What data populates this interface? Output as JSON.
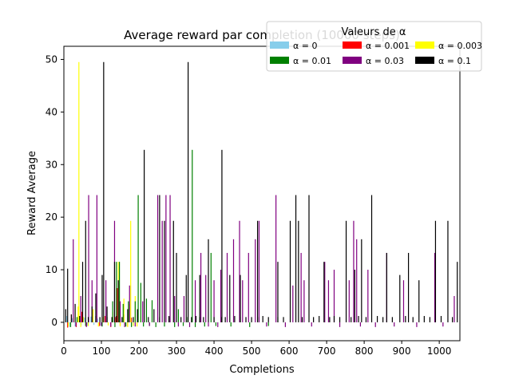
{
  "chart_data": {
    "type": "bar",
    "title": "Average reward par completion (10000 steps)",
    "xlabel": "Completions",
    "ylabel": "Reward Average",
    "xlim": [
      0,
      1055
    ],
    "ylim": [
      -3.5,
      52.5
    ],
    "xticks": [
      0,
      100,
      200,
      300,
      400,
      500,
      600,
      700,
      800,
      900,
      1000
    ],
    "yticks": [
      0,
      10,
      20,
      30,
      40,
      50
    ],
    "xtick_labels": [
      "0",
      "100",
      "200",
      "300",
      "400",
      "500",
      "600",
      "700",
      "800",
      "900",
      "1000"
    ],
    "ytick_labels": [
      "0",
      "10",
      "20",
      "30",
      "40",
      "50"
    ],
    "grid": false,
    "legend": {
      "title": "Valeurs de α",
      "placement": "top-right",
      "ncol": 3
    },
    "series": [
      {
        "name": "α = 0",
        "color": "#87ceeb",
        "points": [
          [
            8,
            1.2
          ],
          [
            15,
            -0.9
          ],
          [
            22,
            0.8
          ],
          [
            30,
            -0.8
          ],
          [
            38,
            1.0
          ],
          [
            46,
            -0.6
          ],
          [
            55,
            0.9
          ],
          [
            63,
            -0.7
          ],
          [
            72,
            1.1
          ],
          [
            80,
            -0.5
          ],
          [
            90,
            0.7
          ],
          [
            98,
            -0.6
          ]
        ]
      },
      {
        "name": "α = 0.001",
        "color": "#ff0000",
        "points": [
          [
            10,
            -1.0
          ],
          [
            20,
            1.5
          ],
          [
            33,
            -0.9
          ],
          [
            48,
            2.0
          ],
          [
            60,
            -0.8
          ],
          [
            75,
            1.0
          ],
          [
            95,
            -0.7
          ],
          [
            110,
            1.2
          ],
          [
            125,
            -0.9
          ],
          [
            138,
            1.0
          ],
          [
            142,
            6.5
          ],
          [
            150,
            -0.6
          ],
          [
            160,
            1.5
          ],
          [
            170,
            -0.8
          ],
          [
            180,
            0.9
          ]
        ]
      },
      {
        "name": "α = 0.003",
        "color": "#ffff00",
        "points": [
          [
            12,
            -0.8
          ],
          [
            25,
            0.9
          ],
          [
            38,
            3.0
          ],
          [
            40,
            49.5
          ],
          [
            45,
            -0.9
          ],
          [
            52,
            1.0
          ],
          [
            65,
            -0.7
          ],
          [
            78,
            2.5
          ],
          [
            92,
            -0.8
          ],
          [
            105,
            1.0
          ],
          [
            118,
            -0.6
          ],
          [
            130,
            2.0
          ],
          [
            145,
            11.5
          ],
          [
            150,
            -0.8
          ],
          [
            160,
            4.5
          ],
          [
            170,
            -0.9
          ],
          [
            175,
            3.5
          ],
          [
            178,
            19.3
          ],
          [
            185,
            -0.7
          ],
          [
            190,
            5.0
          ],
          [
            195,
            -0.8
          ],
          [
            205,
            1.1
          ]
        ]
      },
      {
        "name": "α = 0.01",
        "color": "#008000",
        "points": [
          [
            18,
            -0.9
          ],
          [
            35,
            1.0
          ],
          [
            58,
            -0.7
          ],
          [
            85,
            1.2
          ],
          [
            102,
            -0.8
          ],
          [
            115,
            1.0
          ],
          [
            130,
            4.0
          ],
          [
            136,
            -0.9
          ],
          [
            140,
            11.5
          ],
          [
            148,
            11.5
          ],
          [
            158,
            3.5
          ],
          [
            165,
            -0.8
          ],
          [
            172,
            4.0
          ],
          [
            180,
            -0.9
          ],
          [
            190,
            4.0
          ],
          [
            198,
            24.2
          ],
          [
            205,
            7.5
          ],
          [
            212,
            -0.8
          ],
          [
            220,
            4.5
          ],
          [
            228,
            -0.7
          ],
          [
            235,
            4.2
          ],
          [
            245,
            -0.9
          ],
          [
            255,
            1.0
          ],
          [
            268,
            -0.8
          ],
          [
            280,
            1.0
          ],
          [
            295,
            -0.9
          ],
          [
            305,
            2.5
          ],
          [
            318,
            -0.7
          ],
          [
            330,
            1.0
          ],
          [
            342,
            32.8
          ],
          [
            350,
            -0.9
          ],
          [
            362,
            1.0
          ],
          [
            375,
            -0.8
          ],
          [
            392,
            13.2
          ],
          [
            405,
            -0.7
          ],
          [
            420,
            1.0
          ],
          [
            445,
            -0.8
          ],
          [
            470,
            1.0
          ],
          [
            495,
            -0.9
          ],
          [
            520,
            1.0
          ],
          [
            545,
            -0.7
          ],
          [
            570,
            1.0
          ]
        ]
      },
      {
        "name": "α = 0.03",
        "color": "#800080",
        "points": [
          [
            25,
            15.8
          ],
          [
            32,
            -0.8
          ],
          [
            45,
            5.0
          ],
          [
            60,
            -0.9
          ],
          [
            66,
            24.2
          ],
          [
            75,
            8.0
          ],
          [
            88,
            24.2
          ],
          [
            100,
            -0.7
          ],
          [
            112,
            8.0
          ],
          [
            125,
            -0.8
          ],
          [
            135,
            19.3
          ],
          [
            150,
            4.0
          ],
          [
            162,
            -0.9
          ],
          [
            175,
            7.0
          ],
          [
            190,
            -0.8
          ],
          [
            210,
            4.0
          ],
          [
            228,
            -0.7
          ],
          [
            250,
            24.2
          ],
          [
            262,
            19.3
          ],
          [
            272,
            24.2
          ],
          [
            283,
            24.2
          ],
          [
            295,
            5.0
          ],
          [
            305,
            -0.8
          ],
          [
            320,
            5.0
          ],
          [
            335,
            -0.9
          ],
          [
            350,
            8.0
          ],
          [
            365,
            13.2
          ],
          [
            378,
            9.0
          ],
          [
            385,
            -0.8
          ],
          [
            400,
            8.0
          ],
          [
            410,
            -0.9
          ],
          [
            418,
            10.0
          ],
          [
            435,
            13.2
          ],
          [
            452,
            15.8
          ],
          [
            468,
            19.3
          ],
          [
            476,
            8.0
          ],
          [
            492,
            13.2
          ],
          [
            510,
            15.8
          ],
          [
            520,
            19.3
          ],
          [
            540,
            -0.8
          ],
          [
            565,
            24.2
          ],
          [
            590,
            -0.9
          ],
          [
            610,
            7.0
          ],
          [
            632,
            13.2
          ],
          [
            640,
            8.0
          ],
          [
            660,
            -0.8
          ],
          [
            695,
            11.5
          ],
          [
            705,
            8.0
          ],
          [
            720,
            10.0
          ],
          [
            735,
            -0.9
          ],
          [
            760,
            8.0
          ],
          [
            772,
            19.3
          ],
          [
            780,
            15.8
          ],
          [
            790,
            -0.8
          ],
          [
            810,
            10.0
          ],
          [
            830,
            -0.9
          ],
          [
            860,
            13.2
          ],
          [
            880,
            -0.8
          ],
          [
            905,
            8.0
          ],
          [
            940,
            -0.9
          ],
          [
            988,
            13.2
          ],
          [
            1010,
            -0.8
          ],
          [
            1040,
            5.0
          ]
        ]
      },
      {
        "name": "α = 0.1",
        "color": "#000000",
        "points": [
          [
            5,
            2.5
          ],
          [
            10,
            10.2
          ],
          [
            20,
            1.5
          ],
          [
            30,
            3.5
          ],
          [
            42,
            1.2
          ],
          [
            50,
            11.5
          ],
          [
            58,
            19.3
          ],
          [
            65,
            1.0
          ],
          [
            75,
            3.0
          ],
          [
            85,
            5.5
          ],
          [
            96,
            1.0
          ],
          [
            102,
            9.0
          ],
          [
            106,
            49.5
          ],
          [
            115,
            3.0
          ],
          [
            128,
            1.0
          ],
          [
            135,
            11.5
          ],
          [
            140,
            1.2
          ],
          [
            145,
            8.0
          ],
          [
            155,
            1.0
          ],
          [
            170,
            2.5
          ],
          [
            185,
            1.0
          ],
          [
            196,
            2.5
          ],
          [
            214,
            32.8
          ],
          [
            225,
            1.0
          ],
          [
            240,
            2.5
          ],
          [
            255,
            24.2
          ],
          [
            268,
            19.3
          ],
          [
            280,
            1.2
          ],
          [
            292,
            19.3
          ],
          [
            300,
            13.2
          ],
          [
            312,
            1.0
          ],
          [
            326,
            9.0
          ],
          [
            331,
            49.5
          ],
          [
            340,
            1.0
          ],
          [
            352,
            1.2
          ],
          [
            362,
            9.0
          ],
          [
            372,
            1.0
          ],
          [
            385,
            15.8
          ],
          [
            400,
            1.0
          ],
          [
            421,
            32.8
          ],
          [
            430,
            1.0
          ],
          [
            442,
            9.0
          ],
          [
            455,
            1.2
          ],
          [
            470,
            9.0
          ],
          [
            485,
            1.0
          ],
          [
            500,
            1.0
          ],
          [
            516,
            19.3
          ],
          [
            530,
            1.2
          ],
          [
            545,
            1.0
          ],
          [
            570,
            11.5
          ],
          [
            585,
            1.0
          ],
          [
            603,
            19.3
          ],
          [
            618,
            24.2
          ],
          [
            625,
            19.3
          ],
          [
            635,
            1.0
          ],
          [
            653,
            24.2
          ],
          [
            665,
            1.0
          ],
          [
            680,
            1.2
          ],
          [
            693,
            11.5
          ],
          [
            708,
            1.0
          ],
          [
            720,
            1.2
          ],
          [
            735,
            1.0
          ],
          [
            752,
            19.3
          ],
          [
            765,
            1.0
          ],
          [
            775,
            10.0
          ],
          [
            785,
            1.2
          ],
          [
            793,
            15.8
          ],
          [
            805,
            1.0
          ],
          [
            820,
            24.2
          ],
          [
            835,
            1.2
          ],
          [
            850,
            1.0
          ],
          [
            860,
            13.2
          ],
          [
            875,
            1.0
          ],
          [
            895,
            9.0
          ],
          [
            910,
            1.2
          ],
          [
            918,
            13.2
          ],
          [
            930,
            1.0
          ],
          [
            946,
            8.0
          ],
          [
            960,
            1.2
          ],
          [
            975,
            1.0
          ],
          [
            990,
            19.3
          ],
          [
            1005,
            1.2
          ],
          [
            1023,
            19.3
          ],
          [
            1035,
            1.0
          ],
          [
            1048,
            11.5
          ]
        ]
      }
    ]
  }
}
